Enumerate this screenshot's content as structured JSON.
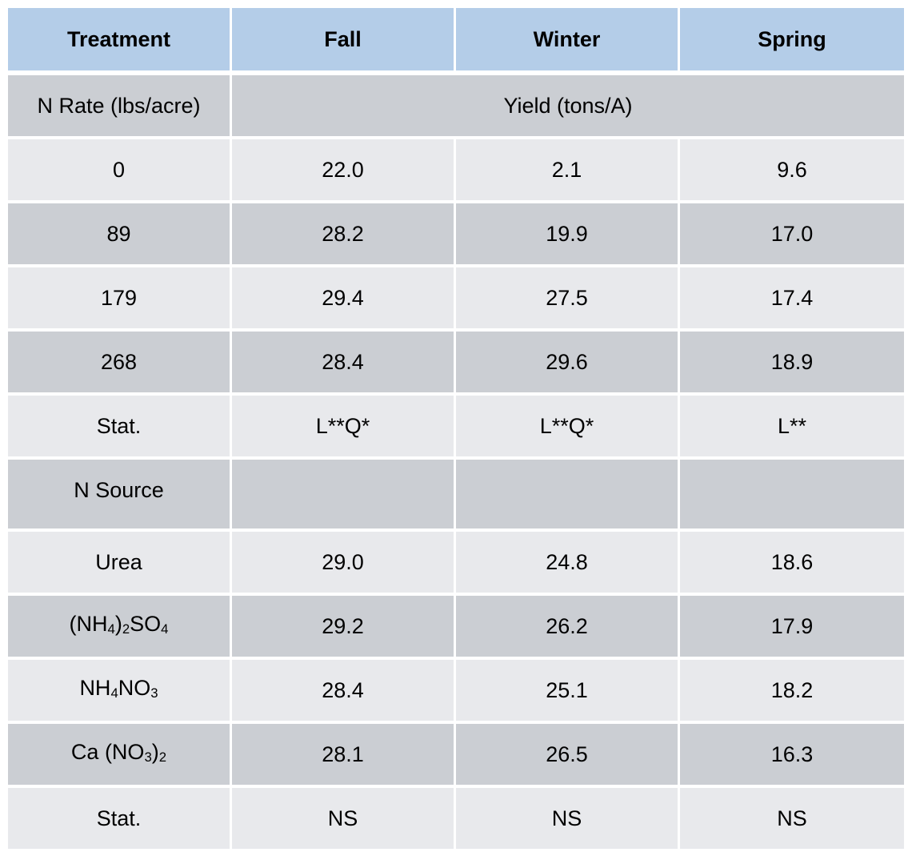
{
  "table": {
    "headers": [
      "Treatment",
      "Fall",
      "Winter",
      "Spring"
    ],
    "n_rate_section": {
      "label": "N Rate (lbs/acre)",
      "span_label": "Yield (tons/A)"
    },
    "n_rate_rows": [
      {
        "treatment": "0",
        "fall": "22.0",
        "winter": "2.1",
        "spring": "9.6"
      },
      {
        "treatment": "89",
        "fall": "28.2",
        "winter": "19.9",
        "spring": "17.0"
      },
      {
        "treatment": "179",
        "fall": "29.4",
        "winter": "27.5",
        "spring": "17.4"
      },
      {
        "treatment": "268",
        "fall": "28.4",
        "winter": "29.6",
        "spring": "18.9"
      }
    ],
    "n_rate_stat": {
      "treatment": "Stat.",
      "fall": "L**Q*",
      "winter": "L**Q*",
      "spring": "L**"
    },
    "n_source_section": {
      "label": "N Source"
    },
    "n_source_rows": [
      {
        "treatment": "Urea",
        "fall": "29.0",
        "winter": "24.8",
        "spring": "18.6"
      },
      {
        "treatment_parts": [
          "(NH",
          "4",
          ")",
          "2",
          "SO",
          "4"
        ],
        "fall": "29.2",
        "winter": "26.2",
        "spring": "17.9"
      },
      {
        "treatment_parts": [
          "NH",
          "4",
          "NO",
          "3"
        ],
        "fall": "28.4",
        "winter": "25.1",
        "spring": "18.2"
      },
      {
        "treatment_parts": [
          "Ca (NO",
          "3",
          ")",
          "2"
        ],
        "fall": "28.1",
        "winter": "26.5",
        "spring": "16.3"
      }
    ],
    "n_source_stat": {
      "treatment": "Stat.",
      "fall": "NS",
      "winter": "NS",
      "spring": "NS"
    },
    "colors": {
      "header_bg": "#b4cde8",
      "row_light": "#e8e9ec",
      "row_dark": "#cbced3"
    }
  }
}
